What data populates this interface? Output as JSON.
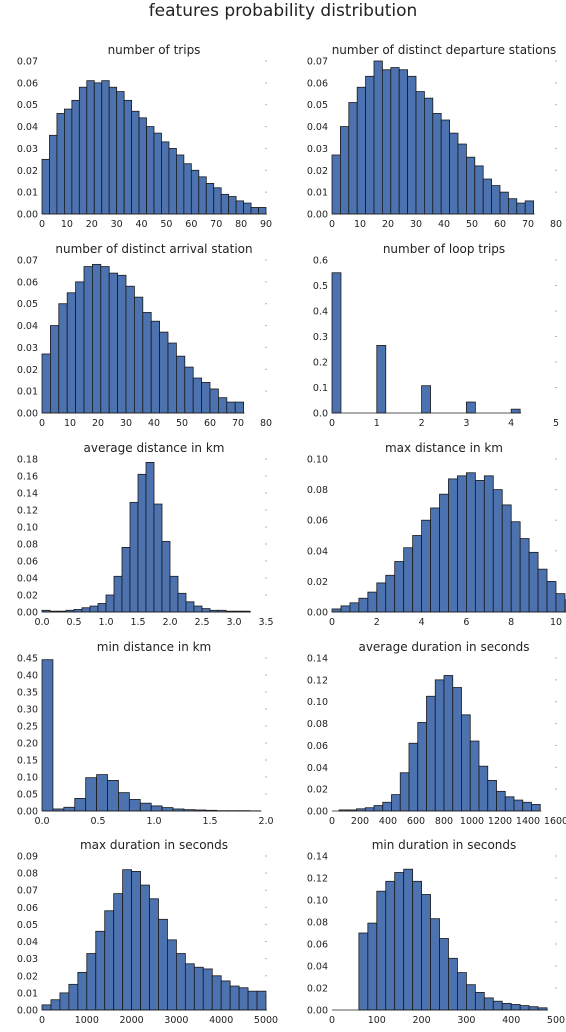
{
  "figure": {
    "title": "features probability distribution"
  },
  "colors": {
    "bar": "#4c72b0",
    "edge": "#1a1a1a"
  },
  "chart_data": [
    {
      "type": "bar",
      "title": "number of trips",
      "bin_start": 0,
      "bin_width": 3,
      "values": [
        0.025,
        0.036,
        0.046,
        0.048,
        0.052,
        0.058,
        0.061,
        0.06,
        0.061,
        0.058,
        0.056,
        0.052,
        0.047,
        0.044,
        0.04,
        0.037,
        0.033,
        0.03,
        0.027,
        0.023,
        0.02,
        0.017,
        0.014,
        0.012,
        0.009,
        0.008,
        0.006,
        0.005,
        0.003,
        0.003
      ],
      "xlim": [
        0,
        90
      ],
      "ylim": [
        0,
        0.07
      ],
      "xticks": [
        0,
        10,
        20,
        30,
        40,
        50,
        60,
        70,
        80,
        90
      ],
      "xtick_labels": [
        "0",
        "10",
        "20",
        "30",
        "40",
        "50",
        "60",
        "70",
        "80",
        "90"
      ],
      "yticks": [
        0,
        0.01,
        0.02,
        0.03,
        0.04,
        0.05,
        0.06,
        0.07
      ],
      "ytick_labels": [
        "0.00",
        "0.01",
        "0.02",
        "0.03",
        "0.04",
        "0.05",
        "0.06",
        "0.07"
      ]
    },
    {
      "type": "bar",
      "title": "number of distinct departure stations",
      "bin_start": 0,
      "bin_width": 3,
      "values": [
        0.027,
        0.04,
        0.051,
        0.058,
        0.063,
        0.07,
        0.066,
        0.067,
        0.066,
        0.063,
        0.056,
        0.053,
        0.046,
        0.043,
        0.037,
        0.032,
        0.026,
        0.022,
        0.016,
        0.013,
        0.01,
        0.007,
        0.005,
        0.006
      ],
      "xlim": [
        0,
        80
      ],
      "ylim": [
        0,
        0.07
      ],
      "xticks": [
        0,
        10,
        20,
        30,
        40,
        50,
        60,
        70,
        80
      ],
      "xtick_labels": [
        "0",
        "10",
        "20",
        "30",
        "40",
        "50",
        "60",
        "70",
        "80"
      ],
      "yticks": [
        0,
        0.01,
        0.02,
        0.03,
        0.04,
        0.05,
        0.06,
        0.07
      ],
      "ytick_labels": [
        "0.00",
        "0.01",
        "0.02",
        "0.03",
        "0.04",
        "0.05",
        "0.06",
        "0.07"
      ]
    },
    {
      "type": "bar",
      "title": "number of distinct arrival station",
      "bin_start": 0,
      "bin_width": 3,
      "values": [
        0.027,
        0.04,
        0.05,
        0.055,
        0.06,
        0.067,
        0.068,
        0.067,
        0.064,
        0.063,
        0.058,
        0.053,
        0.046,
        0.042,
        0.037,
        0.032,
        0.026,
        0.021,
        0.016,
        0.014,
        0.011,
        0.007,
        0.005,
        0.005
      ],
      "xlim": [
        0,
        80
      ],
      "ylim": [
        0,
        0.07
      ],
      "xticks": [
        0,
        10,
        20,
        30,
        40,
        50,
        60,
        70,
        80
      ],
      "xtick_labels": [
        "0",
        "10",
        "20",
        "30",
        "40",
        "50",
        "60",
        "70",
        "80"
      ],
      "yticks": [
        0,
        0.01,
        0.02,
        0.03,
        0.04,
        0.05,
        0.06,
        0.07
      ],
      "ytick_labels": [
        "0.00",
        "0.01",
        "0.02",
        "0.03",
        "0.04",
        "0.05",
        "0.06",
        "0.07"
      ]
    },
    {
      "type": "bar",
      "title": "number of loop trips",
      "bin_start": 0,
      "bin_width": 0.2,
      "values": [
        0.55,
        0,
        0,
        0,
        0,
        0.265,
        0,
        0,
        0,
        0,
        0.107,
        0,
        0,
        0,
        0,
        0.043,
        0,
        0,
        0,
        0,
        0.015
      ],
      "xlim": [
        0,
        5
      ],
      "ylim": [
        0,
        0.6
      ],
      "xticks": [
        0,
        1,
        2,
        3,
        4,
        5
      ],
      "xtick_labels": [
        "0",
        "1",
        "2",
        "3",
        "4",
        "5"
      ],
      "yticks": [
        0,
        0.1,
        0.2,
        0.3,
        0.4,
        0.5,
        0.6
      ],
      "ytick_labels": [
        "0.0",
        "0.1",
        "0.2",
        "0.3",
        "0.4",
        "0.5",
        "0.6"
      ]
    },
    {
      "type": "bar",
      "title": "average distance in km",
      "bin_start": 0,
      "bin_width": 0.125,
      "values": [
        0.002,
        0.001,
        0.001,
        0.002,
        0.003,
        0.005,
        0.007,
        0.01,
        0.02,
        0.042,
        0.076,
        0.129,
        0.162,
        0.176,
        0.127,
        0.083,
        0.042,
        0.022,
        0.012,
        0.007,
        0.004,
        0.002,
        0.002,
        0.001,
        0.001,
        0.001
      ],
      "xlim": [
        0,
        3.5
      ],
      "ylim": [
        0,
        0.18
      ],
      "xticks": [
        0,
        0.5,
        1.0,
        1.5,
        2.0,
        2.5,
        3.0,
        3.5
      ],
      "xtick_labels": [
        "0.0",
        "0.5",
        "1.0",
        "1.5",
        "2.0",
        "2.5",
        "3.0",
        "3.5"
      ],
      "yticks": [
        0,
        0.02,
        0.04,
        0.06,
        0.08,
        0.1,
        0.12,
        0.14,
        0.16,
        0.18
      ],
      "ytick_labels": [
        "0.00",
        "0.02",
        "0.04",
        "0.06",
        "0.08",
        "0.10",
        "0.12",
        "0.14",
        "0.16",
        "0.18"
      ]
    },
    {
      "type": "bar",
      "title": "max distance in km",
      "bin_start": 0,
      "bin_width": 0.4,
      "values": [
        0.002,
        0.004,
        0.006,
        0.009,
        0.013,
        0.019,
        0.024,
        0.033,
        0.042,
        0.05,
        0.06,
        0.068,
        0.077,
        0.087,
        0.089,
        0.091,
        0.086,
        0.089,
        0.08,
        0.07,
        0.059,
        0.048,
        0.039,
        0.028,
        0.02,
        0.012,
        0.008,
        0.004
      ],
      "xlim": [
        0,
        10
      ],
      "ylim": [
        0,
        0.1
      ],
      "xticks": [
        0,
        2,
        4,
        6,
        8,
        10
      ],
      "xtick_labels": [
        "0",
        "2",
        "4",
        "6",
        "8",
        "10"
      ],
      "yticks": [
        0,
        0.02,
        0.04,
        0.06,
        0.08,
        0.1
      ],
      "ytick_labels": [
        "0.00",
        "0.02",
        "0.04",
        "0.06",
        "0.08",
        "0.10"
      ]
    },
    {
      "type": "bar",
      "title": "min distance in km",
      "bin_start": 0,
      "bin_width": 0.0975,
      "values": [
        0.445,
        0.006,
        0.011,
        0.037,
        0.098,
        0.107,
        0.09,
        0.054,
        0.034,
        0.023,
        0.015,
        0.01,
        0.006,
        0.004,
        0.003,
        0.002,
        0.001,
        0.001,
        0.001,
        0.0005
      ],
      "xlim": [
        0,
        2.0
      ],
      "ylim": [
        0,
        0.45
      ],
      "xticks": [
        0,
        0.5,
        1.0,
        1.5,
        2.0
      ],
      "xtick_labels": [
        "0.0",
        "0.5",
        "1.0",
        "1.5",
        "2.0"
      ],
      "yticks": [
        0,
        0.05,
        0.1,
        0.15,
        0.2,
        0.25,
        0.3,
        0.35,
        0.4,
        0.45
      ],
      "ytick_labels": [
        "0.00",
        "0.05",
        "0.10",
        "0.15",
        "0.20",
        "0.25",
        "0.30",
        "0.35",
        "0.40",
        "0.45"
      ]
    },
    {
      "type": "bar",
      "title": "average duration in seconds",
      "bin_start": 50,
      "bin_width": 62.5,
      "values": [
        0.001,
        0.001,
        0.002,
        0.003,
        0.005,
        0.008,
        0.015,
        0.035,
        0.062,
        0.081,
        0.105,
        0.12,
        0.124,
        0.113,
        0.088,
        0.064,
        0.041,
        0.028,
        0.018,
        0.013,
        0.01,
        0.008,
        0.006
      ],
      "xlim": [
        0,
        1600
      ],
      "ylim": [
        0,
        0.14
      ],
      "xticks": [
        0,
        200,
        400,
        600,
        800,
        1000,
        1200,
        1400,
        1600
      ],
      "xtick_labels": [
        "0",
        "200",
        "400",
        "600",
        "800",
        "1000",
        "1200",
        "1400",
        "1600"
      ],
      "yticks": [
        0,
        0.02,
        0.04,
        0.06,
        0.08,
        0.1,
        0.12,
        0.14
      ],
      "ytick_labels": [
        "0.00",
        "0.02",
        "0.04",
        "0.06",
        "0.08",
        "0.10",
        "0.12",
        "0.14"
      ]
    },
    {
      "type": "bar",
      "title": "max duration in seconds",
      "bin_start": 0,
      "bin_width": 200,
      "values": [
        0.003,
        0.006,
        0.01,
        0.015,
        0.022,
        0.033,
        0.046,
        0.058,
        0.068,
        0.082,
        0.081,
        0.073,
        0.065,
        0.053,
        0.041,
        0.033,
        0.027,
        0.025,
        0.024,
        0.02,
        0.017,
        0.014,
        0.013,
        0.011,
        0.011
      ],
      "xlim": [
        0,
        5000
      ],
      "ylim": [
        0,
        0.09
      ],
      "xticks": [
        0,
        1000,
        2000,
        3000,
        4000,
        5000
      ],
      "xtick_labels": [
        "0",
        "1000",
        "2000",
        "3000",
        "4000",
        "5000"
      ],
      "yticks": [
        0,
        0.01,
        0.02,
        0.03,
        0.04,
        0.05,
        0.06,
        0.07,
        0.08,
        0.09
      ],
      "ytick_labels": [
        "0.00",
        "0.01",
        "0.02",
        "0.03",
        "0.04",
        "0.05",
        "0.06",
        "0.07",
        "0.08",
        "0.09"
      ]
    },
    {
      "type": "bar",
      "title": "min duration in seconds",
      "bin_start": 60,
      "bin_width": 20,
      "values": [
        0.07,
        0.079,
        0.108,
        0.117,
        0.125,
        0.128,
        0.117,
        0.105,
        0.083,
        0.065,
        0.047,
        0.034,
        0.023,
        0.016,
        0.011,
        0.008,
        0.006,
        0.005,
        0.004,
        0.003,
        0.002
      ],
      "xlim": [
        0,
        500
      ],
      "ylim": [
        0,
        0.14
      ],
      "xticks": [
        0,
        100,
        200,
        300,
        400,
        500
      ],
      "xtick_labels": [
        "0",
        "100",
        "200",
        "300",
        "400",
        "500"
      ],
      "yticks": [
        0,
        0.02,
        0.04,
        0.06,
        0.08,
        0.1,
        0.12,
        0.14
      ],
      "ytick_labels": [
        "0.00",
        "0.02",
        "0.04",
        "0.06",
        "0.08",
        "0.10",
        "0.12",
        "0.14"
      ]
    }
  ]
}
